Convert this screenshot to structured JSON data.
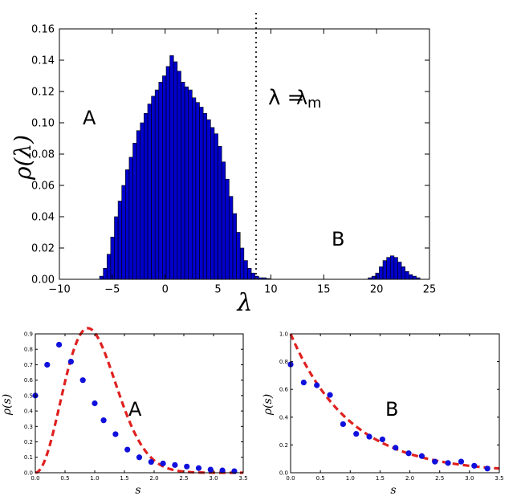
{
  "chart_data": [
    {
      "id": "main",
      "type": "bar",
      "title": "",
      "xlabel": "λ",
      "ylabel": "ρ(λ)",
      "xlim": [
        -10,
        25
      ],
      "ylim": [
        0,
        0.16
      ],
      "xticks": [
        -10,
        -5,
        0,
        5,
        10,
        15,
        20,
        25
      ],
      "xtick_labels": [
        "−10",
        "−5",
        "0",
        "5",
        "10",
        "15",
        "20",
        "25"
      ],
      "yticks": [
        0,
        0.02,
        0.04,
        0.06,
        0.08,
        0.1,
        0.12,
        0.14,
        0.16
      ],
      "ytick_labels": [
        "0.00",
        "0.02",
        "0.04",
        "0.06",
        "0.08",
        "0.10",
        "0.12",
        "0.14",
        "0.16"
      ],
      "bin_width": 0.35,
      "bar_color": "#0000cc",
      "histogram_A": {
        "start": -6.2,
        "values": [
          0.002,
          0.007,
          0.016,
          0.027,
          0.04,
          0.05,
          0.06,
          0.07,
          0.078,
          0.087,
          0.095,
          0.1,
          0.106,
          0.112,
          0.117,
          0.121,
          0.126,
          0.13,
          0.136,
          0.143,
          0.139,
          0.133,
          0.126,
          0.123,
          0.121,
          0.116,
          0.113,
          0.11,
          0.106,
          0.102,
          0.097,
          0.093,
          0.085,
          0.075,
          0.064,
          0.053,
          0.042,
          0.03,
          0.02,
          0.012,
          0.007,
          0.004,
          0.002,
          0.001,
          0.001,
          0.0005
        ]
      },
      "histogram_B": {
        "start": 19.2,
        "values": [
          0.001,
          0.002,
          0.004,
          0.008,
          0.012,
          0.014,
          0.015,
          0.014,
          0.011,
          0.008,
          0.005,
          0.003,
          0.002,
          0.001
        ]
      },
      "vline": {
        "x": 8.6,
        "style": "dotted",
        "color": "#333333"
      },
      "annotations": {
        "A": "A",
        "B": "B",
        "lambda_eq": "λ =",
        "lambda_m": "λ",
        "lambda_m_sub": "m"
      }
    },
    {
      "id": "spacingA",
      "type": "scatter",
      "label": "A",
      "xlabel": "s",
      "ylabel": "ρ(s)",
      "xlim": [
        0,
        3.5
      ],
      "ylim": [
        0,
        0.9
      ],
      "xticks": [
        0,
        0.5,
        1.0,
        1.5,
        2.0,
        2.5,
        3.0,
        3.5
      ],
      "xtick_labels": [
        "0.0",
        "0.5",
        "1.0",
        "1.5",
        "2.0",
        "2.5",
        "3.0",
        "3.5"
      ],
      "yticks": [
        0,
        0.1,
        0.2,
        0.3,
        0.4,
        0.5,
        0.6,
        0.7,
        0.8,
        0.9
      ],
      "ytick_labels": [
        "0.0",
        "0.1",
        "0.2",
        "0.3",
        "0.4",
        "0.5",
        "0.6",
        "0.7",
        "0.8",
        "0.9"
      ],
      "points": {
        "x": [
          0.0,
          0.2,
          0.4,
          0.6,
          0.8,
          1.0,
          1.15,
          1.35,
          1.55,
          1.75,
          1.95,
          2.15,
          2.35,
          2.55,
          2.75,
          2.95,
          3.15,
          3.35
        ],
        "y": [
          0.5,
          0.7,
          0.83,
          0.72,
          0.6,
          0.45,
          0.34,
          0.25,
          0.15,
          0.1,
          0.07,
          0.06,
          0.05,
          0.04,
          0.03,
          0.02,
          0.015,
          0.01
        ]
      },
      "curve": {
        "type": "wigner-gue",
        "style": "dashed",
        "color": "#e02020"
      },
      "point_color": "#1010dd"
    },
    {
      "id": "spacingB",
      "type": "scatter",
      "label": "B",
      "xlabel": "s",
      "ylabel": "ρ(s)",
      "xlim": [
        0,
        3.5
      ],
      "ylim": [
        0,
        1.0
      ],
      "xticks": [
        0,
        0.5,
        1.0,
        1.5,
        2.0,
        2.5,
        3.0,
        3.5
      ],
      "xtick_labels": [
        "0.0",
        "0.5",
        "1.0",
        "1.5",
        "2.0",
        "2.5",
        "3.0",
        "3.5"
      ],
      "yticks": [
        0,
        0.2,
        0.4,
        0.6,
        0.8,
        1.0
      ],
      "ytick_labels": [
        "0.0",
        "0.2",
        "0.4",
        "0.6",
        "0.8",
        "1.0"
      ],
      "points": {
        "x": [
          0.0,
          0.22,
          0.44,
          0.66,
          0.88,
          1.1,
          1.32,
          1.54,
          1.76,
          1.98,
          2.2,
          2.42,
          2.64,
          2.86,
          3.08,
          3.3
        ],
        "y": [
          0.78,
          0.65,
          0.63,
          0.56,
          0.35,
          0.28,
          0.26,
          0.24,
          0.18,
          0.14,
          0.12,
          0.08,
          0.07,
          0.08,
          0.05,
          0.03
        ]
      },
      "curve": {
        "type": "poisson",
        "style": "dashed",
        "color": "#e02020"
      },
      "point_color": "#1010dd"
    }
  ]
}
